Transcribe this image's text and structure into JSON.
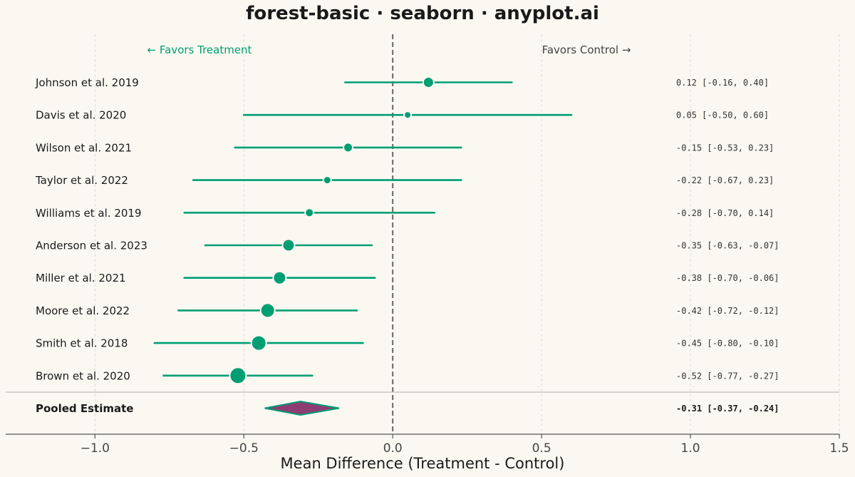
{
  "chart_data": {
    "type": "forest",
    "title": "forest-basic · seaborn · anyplot.ai",
    "xlabel": "Mean Difference (Treatment - Control)",
    "xlim": [
      -1.3,
      1.5
    ],
    "xticks": [
      -1.0,
      -0.5,
      0.0,
      0.5,
      1.0,
      1.5
    ],
    "xtick_labels": [
      "−1.0",
      "−0.5",
      "0.0",
      "0.5",
      "1.0",
      "1.5"
    ],
    "reference_line": 0.0,
    "grid": "vertical-dashed",
    "direction_left": "← Favors Treatment",
    "direction_right": "Favors Control →",
    "studies": [
      {
        "label": "Johnson et al. 2019",
        "estimate": 0.12,
        "lower": -0.16,
        "upper": 0.4,
        "ci_text": "0.12 [-0.16, 0.40]",
        "marker_size": 7.5
      },
      {
        "label": "Davis et al. 2020",
        "estimate": 0.05,
        "lower": -0.5,
        "upper": 0.6,
        "ci_text": "0.05 [-0.50, 0.60]",
        "marker_size": 5
      },
      {
        "label": "Wilson et al. 2021",
        "estimate": -0.15,
        "lower": -0.53,
        "upper": 0.23,
        "ci_text": "-0.15 [-0.53, 0.23]",
        "marker_size": 6.5
      },
      {
        "label": "Taylor et al. 2022",
        "estimate": -0.22,
        "lower": -0.67,
        "upper": 0.23,
        "ci_text": "-0.22 [-0.67, 0.23]",
        "marker_size": 5.5
      },
      {
        "label": "Williams et al. 2019",
        "estimate": -0.28,
        "lower": -0.7,
        "upper": 0.14,
        "ci_text": "-0.28 [-0.70, 0.14]",
        "marker_size": 6
      },
      {
        "label": "Anderson et al. 2023",
        "estimate": -0.35,
        "lower": -0.63,
        "upper": -0.07,
        "ci_text": "-0.35 [-0.63, -0.07]",
        "marker_size": 8.5
      },
      {
        "label": "Miller et al. 2021",
        "estimate": -0.38,
        "lower": -0.7,
        "upper": -0.06,
        "ci_text": "-0.38 [-0.70, -0.06]",
        "marker_size": 9
      },
      {
        "label": "Moore et al. 2022",
        "estimate": -0.42,
        "lower": -0.72,
        "upper": -0.12,
        "ci_text": "-0.42 [-0.72, -0.12]",
        "marker_size": 10
      },
      {
        "label": "Smith et al. 2018",
        "estimate": -0.45,
        "lower": -0.8,
        "upper": -0.1,
        "ci_text": "-0.45 [-0.80, -0.10]",
        "marker_size": 10.5
      },
      {
        "label": "Brown et al. 2020",
        "estimate": -0.52,
        "lower": -0.77,
        "upper": -0.27,
        "ci_text": "-0.52 [-0.77, -0.27]",
        "marker_size": 11.5
      }
    ],
    "pooled": {
      "label": "Pooled Estimate",
      "estimate": -0.31,
      "lower": -0.37,
      "upper": -0.24,
      "ci_text": "-0.31 [-0.37, -0.24]"
    }
  },
  "colors": {
    "background": "#FAF8F1",
    "marker": "#009E73",
    "ci_line": "#009E73",
    "diamond_fill": "#8E3D72",
    "diamond_edge": "#009E73",
    "reference_line": "#666666",
    "grid": "#DDDDDD",
    "axis": "#555555",
    "separator": "#BBBBBB",
    "text": "#1A1A1A"
  }
}
